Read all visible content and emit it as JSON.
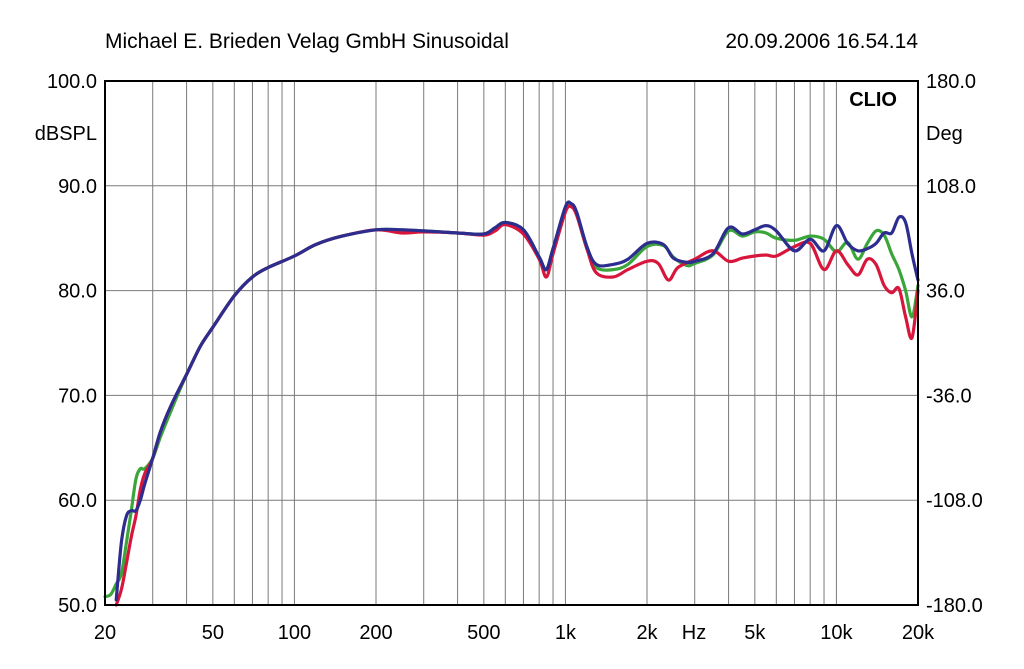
{
  "header": {
    "left": "Michael E. Brieden Velag GmbH Sinusoidal",
    "right": "20.09.2006 16.54.14"
  },
  "chart_data": {
    "type": "line",
    "brand": "CLIO",
    "xscale": "log",
    "xlim": [
      20,
      20000
    ],
    "x_ticks": [
      {
        "value": 20,
        "label": "20"
      },
      {
        "value": 50,
        "label": "50"
      },
      {
        "value": 100,
        "label": "100"
      },
      {
        "value": 200,
        "label": "200"
      },
      {
        "value": 500,
        "label": "500"
      },
      {
        "value": 1000,
        "label": "1k"
      },
      {
        "value": 2000,
        "label": "2k"
      },
      {
        "value": 5000,
        "label": "5k"
      },
      {
        "value": 10000,
        "label": "10k"
      },
      {
        "value": 20000,
        "label": "20k"
      }
    ],
    "x_unit_label": "Hz",
    "ylabel": "dBSPL",
    "ylim": [
      50,
      100
    ],
    "y_ticks": [
      "100.0",
      "90.0",
      "80.0",
      "70.0",
      "60.0",
      "50.0"
    ],
    "y2label": "Deg",
    "y2lim": [
      -180,
      180
    ],
    "y2_ticks": [
      "180.0",
      "108.0",
      "36.0",
      "-36.0",
      "-108.0",
      "-180.0"
    ],
    "grid": true,
    "colors": {
      "grid": "#7a7a7a",
      "frame": "#000000",
      "green": "#3aa63a",
      "red": "#d8163c",
      "blue": "#2d2d8f"
    },
    "series": [
      {
        "color": "green",
        "x": [
          20,
          21,
          22,
          23,
          24,
          25,
          26,
          27,
          28,
          30,
          32,
          35,
          40,
          45,
          50,
          60,
          70,
          80,
          100,
          120,
          150,
          200,
          250,
          300,
          400,
          500,
          550,
          600,
          700,
          800,
          850,
          900,
          1000,
          1050,
          1100,
          1200,
          1300,
          1500,
          1700,
          2000,
          2300,
          2500,
          2800,
          3000,
          3500,
          4000,
          4500,
          5000,
          5500,
          6000,
          7000,
          8000,
          9000,
          10000,
          11000,
          12000,
          13000,
          14000,
          15000,
          16000,
          17000,
          18000,
          19000,
          20000
        ],
        "y": [
          50.8,
          51.0,
          52.0,
          53.0,
          56.0,
          59.0,
          62.0,
          63.0,
          63.0,
          64.0,
          66.0,
          68.5,
          72.0,
          74.7,
          76.5,
          79.5,
          81.3,
          82.2,
          83.3,
          84.4,
          85.2,
          85.8,
          85.8,
          85.7,
          85.5,
          85.4,
          86.0,
          86.5,
          85.8,
          83.2,
          82.0,
          84.0,
          87.8,
          88.1,
          87.3,
          84.0,
          82.2,
          82.0,
          82.5,
          84.2,
          84.3,
          83.2,
          82.4,
          82.6,
          83.4,
          85.7,
          85.2,
          85.6,
          85.5,
          85.0,
          84.8,
          85.2,
          84.9,
          83.7,
          84.6,
          83.0,
          84.5,
          85.7,
          85.3,
          83.5,
          82.0,
          80.0,
          77.5,
          80.5
        ]
      },
      {
        "color": "red",
        "x": [
          22,
          23,
          24,
          25,
          26,
          27,
          28,
          30,
          32,
          35,
          40,
          45,
          50,
          60,
          70,
          80,
          100,
          120,
          150,
          200,
          250,
          300,
          400,
          500,
          550,
          600,
          700,
          800,
          850,
          900,
          1000,
          1050,
          1100,
          1200,
          1300,
          1500,
          1700,
          2000,
          2200,
          2400,
          2600,
          3000,
          3500,
          4000,
          4500,
          5000,
          5500,
          6000,
          7000,
          8000,
          9000,
          10000,
          11000,
          12000,
          13000,
          14000,
          15000,
          16000,
          17000,
          18000,
          19000,
          20000
        ],
        "y": [
          50.0,
          51.5,
          54.0,
          56.5,
          58.5,
          61.0,
          62.5,
          64.0,
          66.5,
          69.0,
          72.0,
          74.7,
          76.5,
          79.5,
          81.3,
          82.2,
          83.3,
          84.4,
          85.2,
          85.8,
          85.5,
          85.6,
          85.5,
          85.3,
          85.7,
          86.3,
          85.4,
          83.0,
          81.3,
          83.5,
          87.5,
          88.0,
          87.2,
          84.0,
          81.7,
          81.3,
          82.0,
          82.8,
          82.6,
          81.0,
          82.2,
          83.0,
          83.8,
          82.8,
          83.1,
          83.3,
          83.4,
          83.3,
          84.2,
          84.5,
          82.0,
          83.8,
          82.5,
          81.5,
          83.0,
          82.5,
          80.5,
          79.8,
          80.2,
          77.5,
          75.5,
          80.0
        ]
      },
      {
        "color": "blue",
        "x": [
          22,
          23,
          24,
          25,
          26,
          27,
          28,
          30,
          32,
          35,
          40,
          45,
          50,
          60,
          70,
          80,
          100,
          120,
          150,
          200,
          250,
          300,
          400,
          500,
          550,
          600,
          700,
          800,
          850,
          900,
          1000,
          1050,
          1100,
          1200,
          1300,
          1500,
          1700,
          2000,
          2300,
          2500,
          2800,
          3000,
          3500,
          4000,
          4500,
          5000,
          5500,
          6000,
          7000,
          8000,
          9000,
          10000,
          11000,
          12000,
          13000,
          14000,
          15000,
          16000,
          17000,
          18000,
          19000,
          20000
        ],
        "y": [
          50.5,
          56.0,
          58.5,
          59.0,
          59.0,
          60.0,
          61.5,
          64.0,
          66.5,
          69.0,
          72.0,
          74.7,
          76.5,
          79.5,
          81.3,
          82.2,
          83.3,
          84.4,
          85.2,
          85.8,
          85.8,
          85.7,
          85.5,
          85.4,
          86.0,
          86.5,
          85.8,
          83.2,
          82.0,
          84.0,
          88.0,
          88.3,
          87.5,
          84.2,
          82.5,
          82.5,
          83.0,
          84.5,
          84.4,
          83.1,
          82.7,
          82.8,
          83.5,
          86.0,
          85.4,
          85.8,
          86.2,
          85.7,
          83.8,
          84.9,
          83.8,
          86.2,
          84.5,
          83.8,
          84.0,
          84.5,
          85.5,
          85.5,
          87.0,
          86.5,
          83.5,
          81.0
        ]
      }
    ]
  }
}
